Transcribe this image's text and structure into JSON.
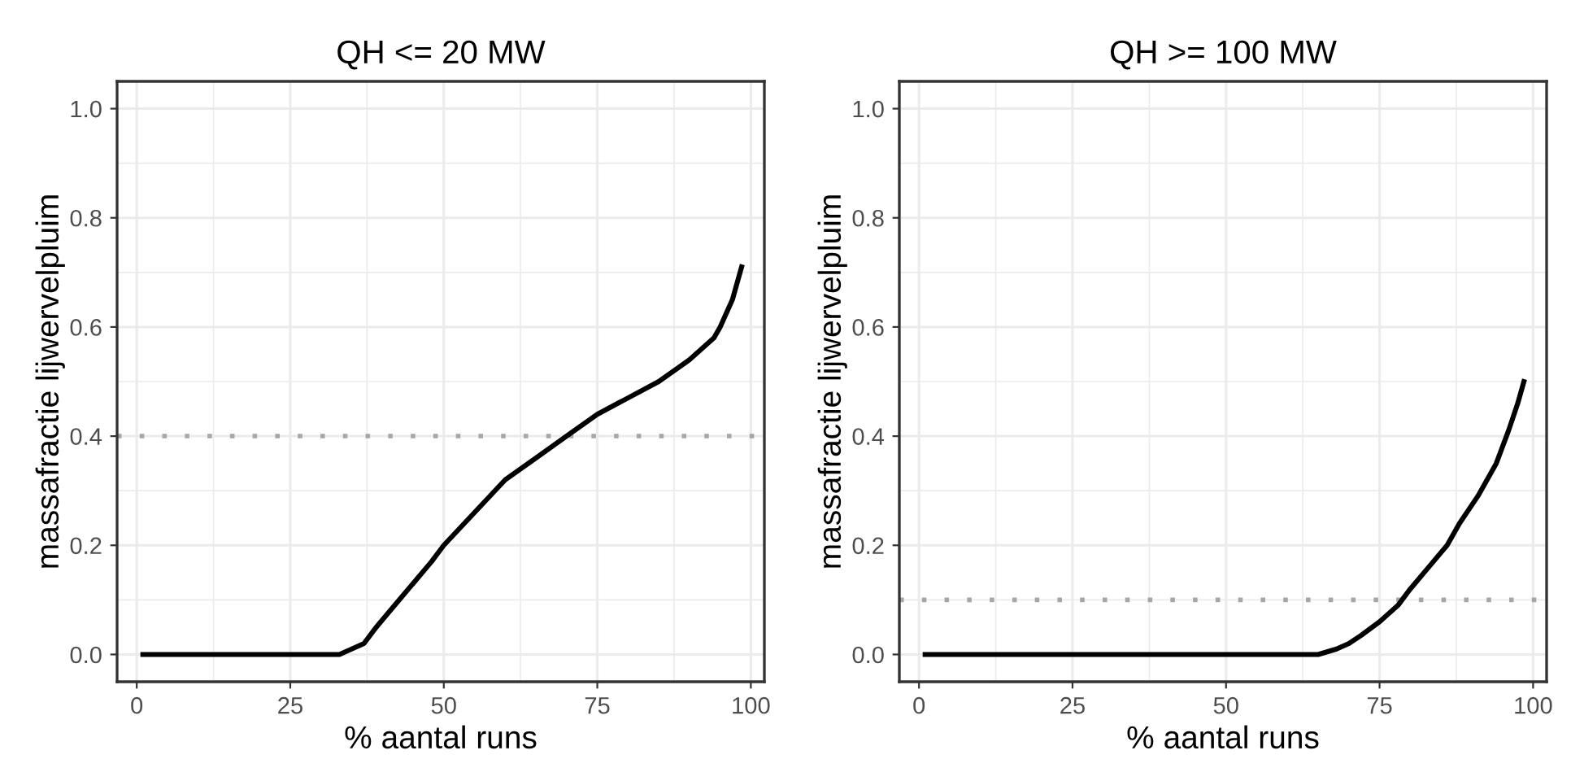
{
  "chart_data": [
    {
      "type": "line",
      "title": "QH <= 20 MW",
      "xlabel": "% aantal runs",
      "ylabel": "massafractie lijwervelpluim",
      "series": [
        {
          "color": "#000000",
          "x": [
            1,
            33,
            35,
            37,
            39,
            42,
            45,
            48,
            50,
            55,
            60,
            65,
            70,
            75,
            80,
            85,
            90,
            94,
            95,
            97,
            97.5,
            98.5
          ],
          "values": [
            0,
            0,
            0.01,
            0.02,
            0.05,
            0.09,
            0.13,
            0.17,
            0.2,
            0.26,
            0.32,
            0.36,
            0.4,
            0.44,
            0.47,
            0.5,
            0.54,
            0.58,
            0.6,
            0.65,
            0.67,
            0.71
          ]
        }
      ],
      "xlim": [
        -3.2,
        102.2
      ],
      "ylim": [
        -0.05,
        1.05
      ],
      "xticks": [
        0,
        25,
        50,
        75,
        100
      ],
      "yticks": [
        {
          "value": 0,
          "label": "0.0"
        },
        {
          "value": 0.2,
          "label": "0.2"
        },
        {
          "value": 0.4,
          "label": "0.4"
        },
        {
          "value": 0.6,
          "label": "0.6"
        },
        {
          "value": 0.8,
          "label": "0.8"
        },
        {
          "value": 1.0,
          "label": "1.0"
        }
      ],
      "ref_lines": [
        {
          "axis": "y",
          "value": 0.4,
          "color": "#a6a6a6",
          "line_style": "dotted"
        }
      ],
      "grid": true,
      "marker": "none",
      "line_style": "solid"
    },
    {
      "type": "line",
      "title": "QH >= 100 MW",
      "xlabel": "% aantal runs",
      "ylabel": "massafractie lijwervelpluim",
      "series": [
        {
          "color": "#000000",
          "x": [
            1,
            65,
            68,
            70,
            72,
            75,
            78,
            80,
            83,
            86,
            88,
            91,
            94,
            96,
            97.5,
            98.5
          ],
          "values": [
            0,
            0,
            0.01,
            0.02,
            0.035,
            0.06,
            0.09,
            0.12,
            0.16,
            0.2,
            0.24,
            0.29,
            0.35,
            0.41,
            0.46,
            0.5
          ]
        }
      ],
      "xlim": [
        -3.2,
        102.2
      ],
      "ylim": [
        -0.05,
        1.05
      ],
      "xticks": [
        0,
        25,
        50,
        75,
        100
      ],
      "yticks": [
        {
          "value": 0,
          "label": "0.0"
        },
        {
          "value": 0.2,
          "label": "0.2"
        },
        {
          "value": 0.4,
          "label": "0.4"
        },
        {
          "value": 0.6,
          "label": "0.6"
        },
        {
          "value": 0.8,
          "label": "0.8"
        },
        {
          "value": 1.0,
          "label": "1.0"
        }
      ],
      "ref_lines": [
        {
          "axis": "y",
          "value": 0.1,
          "color": "#a6a6a6",
          "line_style": "dotted"
        }
      ],
      "grid": true,
      "marker": "none",
      "line_style": "solid"
    }
  ]
}
